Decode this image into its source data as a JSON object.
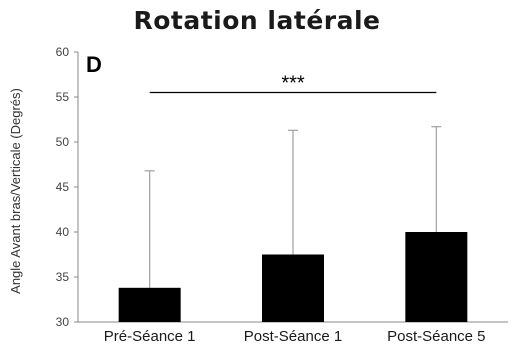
{
  "chart_data": {
    "type": "bar",
    "title": "Rotation latérale",
    "panel_label": "D",
    "ylabel": "Angle Avant bras/Verticale (Degrés)",
    "xlabel": "",
    "ylim": [
      30,
      60
    ],
    "yticks": [
      30,
      35,
      40,
      45,
      50,
      55,
      60
    ],
    "grid": false,
    "categories": [
      "Pré-Séance 1",
      "Post-Séance 1",
      "Post-Séance 5"
    ],
    "values": [
      33.8,
      37.5,
      40.0
    ],
    "error_upper": [
      46.8,
      51.3,
      51.7
    ],
    "significance": {
      "text": "***",
      "from": 0,
      "to": 2,
      "y": 55.5
    },
    "colors": {
      "bar": "#000000",
      "error": "#a0a0a0",
      "axis": "#888888"
    }
  }
}
